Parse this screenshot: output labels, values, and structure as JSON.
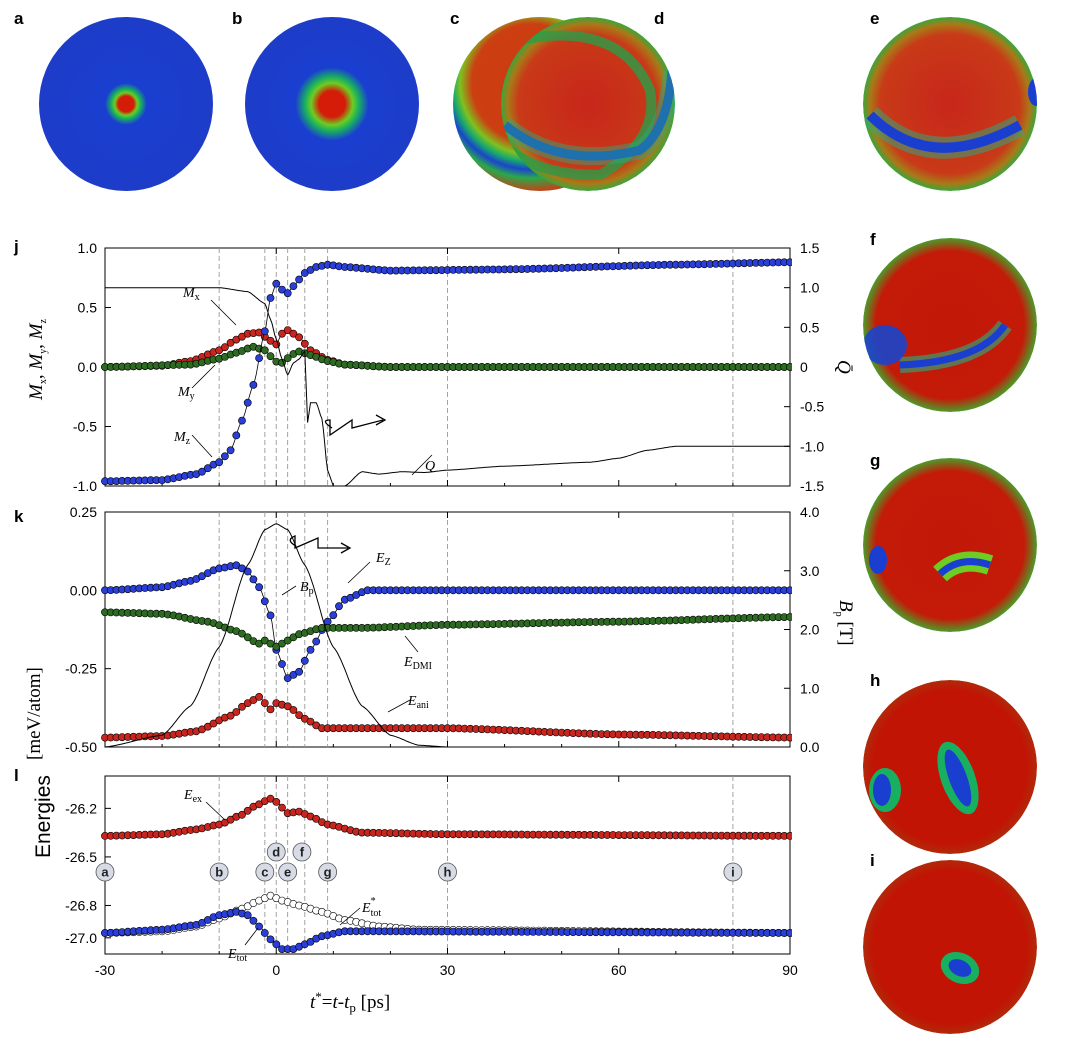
{
  "panel_letters": {
    "a": "a",
    "b": "b",
    "c": "c",
    "d": "d",
    "e": "e",
    "f": "f",
    "g": "g",
    "h": "h",
    "i": "i",
    "j": "j",
    "k": "k",
    "l": "l"
  },
  "colors": {
    "blue": "#2233cc",
    "red": "#cc2200",
    "green": "#00bb33",
    "dot_blue": "#2a3ed8",
    "dot_red": "#c8251e",
    "dot_green": "#2d6b22"
  },
  "snapshots": [
    {
      "id": "a",
      "description_kind": "small-core"
    },
    {
      "id": "b",
      "description_kind": "medium-core"
    },
    {
      "id": "c",
      "description_kind": "inverted"
    },
    {
      "id": "d",
      "description_kind": "wall-arc"
    },
    {
      "id": "e",
      "description_kind": "wall-arc-low"
    },
    {
      "id": "f",
      "description_kind": "elongated"
    },
    {
      "id": "g",
      "description_kind": "short-elongated"
    },
    {
      "id": "h",
      "description_kind": "tilted-oval"
    },
    {
      "id": "i",
      "description_kind": "small-oval"
    }
  ],
  "x_axis": {
    "label": "t* = t - t_p [ps]",
    "ticks": [
      "-30",
      "0",
      "30",
      "60",
      "90"
    ],
    "range": [
      -30,
      90
    ]
  },
  "markers": {
    "times": [
      -30,
      -10,
      -2,
      0,
      2,
      5,
      9,
      30,
      80
    ],
    "labels": [
      "a",
      "b",
      "c",
      "d",
      "e",
      "f",
      "g",
      "h",
      "i"
    ]
  },
  "chart_data": [
    {
      "panel": "j",
      "type": "line",
      "ylabel_left": "Mx, My, Mz",
      "ylabel_right": "Q",
      "ylim_left": [
        -1.0,
        1.0
      ],
      "ylim_right": [
        -1.5,
        1.5
      ],
      "left_ticks": [
        "1.0",
        "0.5",
        "0.0",
        "-0.5",
        "-1.0"
      ],
      "right_ticks": [
        "1.5",
        "1.0",
        "0.5",
        "0",
        "-0.5",
        "-1.0",
        "-1.5"
      ],
      "series": [
        {
          "name": "Mx",
          "points": [
            [
              -30,
              0
            ],
            [
              -20,
              0.01
            ],
            [
              -15,
              0.05
            ],
            [
              -10,
              0.14
            ],
            [
              -7,
              0.23
            ],
            [
              -5,
              0.28
            ],
            [
              -3,
              0.29
            ],
            [
              -1,
              0.22
            ],
            [
              0,
              0.19
            ],
            [
              1,
              0.28
            ],
            [
              2,
              0.31
            ],
            [
              4,
              0.25
            ],
            [
              6,
              0.14
            ],
            [
              9,
              0.06
            ],
            [
              12,
              0.02
            ],
            [
              20,
              0
            ],
            [
              90,
              0
            ]
          ]
        },
        {
          "name": "My",
          "points": [
            [
              -30,
              0
            ],
            [
              -15,
              0.02
            ],
            [
              -10,
              0.07
            ],
            [
              -7,
              0.12
            ],
            [
              -4,
              0.17
            ],
            [
              -2,
              0.14
            ],
            [
              -0.5,
              0.07
            ],
            [
              0.5,
              0.02
            ],
            [
              1.5,
              0.05
            ],
            [
              2.5,
              0.1
            ],
            [
              4,
              0.13
            ],
            [
              6,
              0.1
            ],
            [
              9,
              0.05
            ],
            [
              12,
              0.02
            ],
            [
              20,
              0
            ],
            [
              90,
              0
            ]
          ]
        },
        {
          "name": "Mz",
          "points": [
            [
              -30,
              -0.96
            ],
            [
              -20,
              -0.95
            ],
            [
              -14,
              -0.9
            ],
            [
              -10,
              -0.8
            ],
            [
              -8,
              -0.7
            ],
            [
              -6,
              -0.45
            ],
            [
              -4,
              -0.15
            ],
            [
              -2,
              0.3
            ],
            [
              -1,
              0.58
            ],
            [
              0,
              0.7
            ],
            [
              1,
              0.65
            ],
            [
              2,
              0.62
            ],
            [
              3,
              0.68
            ],
            [
              5,
              0.79
            ],
            [
              7,
              0.84
            ],
            [
              9,
              0.86
            ],
            [
              12,
              0.84
            ],
            [
              20,
              0.81
            ],
            [
              40,
              0.82
            ],
            [
              70,
              0.86
            ],
            [
              90,
              0.88
            ]
          ]
        },
        {
          "name": "Q",
          "points": [
            [
              -30,
              1.0
            ],
            [
              -10,
              1.0
            ],
            [
              -5,
              0.95
            ],
            [
              -2,
              0.8
            ],
            [
              -1,
              0.6
            ],
            [
              0,
              0.35
            ],
            [
              1,
              0.1
            ],
            [
              2,
              -0.1
            ],
            [
              3,
              0.05
            ],
            [
              4,
              0.1
            ],
            [
              5,
              0.2
            ],
            [
              5.5,
              -0.7
            ],
            [
              6,
              -0.45
            ],
            [
              7,
              -0.45
            ],
            [
              8,
              -0.65
            ],
            [
              9,
              -1.3
            ],
            [
              9.5,
              -1.4
            ],
            [
              10,
              -1.5
            ],
            [
              12,
              -1.5
            ],
            [
              15,
              -1.32
            ],
            [
              18,
              -1.35
            ],
            [
              22,
              -1.32
            ],
            [
              26,
              -1.33
            ],
            [
              30,
              -1.3
            ],
            [
              40,
              -1.25
            ],
            [
              55,
              -1.2
            ],
            [
              60,
              -1.15
            ],
            [
              65,
              -1.05
            ],
            [
              70,
              -1.0
            ],
            [
              90,
              -1.0
            ]
          ]
        }
      ]
    },
    {
      "panel": "k",
      "type": "line",
      "ylabel_left": "",
      "ylabel_right": "B_p [T]",
      "ylim_left": [
        -0.5,
        0.25
      ],
      "ylim_right": [
        0,
        4.0
      ],
      "left_ticks": [
        "0.25",
        "0.00",
        "-0.25",
        "-0.50"
      ],
      "right_ticks": [
        "4.0",
        "3.0",
        "2.0",
        "1.0",
        "0.0"
      ],
      "series": [
        {
          "name": "EZ",
          "points": [
            [
              -30,
              0
            ],
            [
              -20,
              0.01
            ],
            [
              -15,
              0.03
            ],
            [
              -10,
              0.07
            ],
            [
              -7,
              0.08
            ],
            [
              -5,
              0.06
            ],
            [
              -3,
              0.01
            ],
            [
              -1,
              -0.08
            ],
            [
              0,
              -0.19
            ],
            [
              2,
              -0.28
            ],
            [
              4,
              -0.26
            ],
            [
              6,
              -0.19
            ],
            [
              9,
              -0.1
            ],
            [
              12,
              -0.03
            ],
            [
              16,
              0
            ],
            [
              90,
              0
            ]
          ]
        },
        {
          "name": "EDMI",
          "points": [
            [
              -30,
              -0.07
            ],
            [
              -20,
              -0.075
            ],
            [
              -12,
              -0.1
            ],
            [
              -7,
              -0.13
            ],
            [
              -3,
              -0.17
            ],
            [
              -2,
              -0.16
            ],
            [
              0,
              -0.18
            ],
            [
              2,
              -0.16
            ],
            [
              4,
              -0.14
            ],
            [
              8,
              -0.12
            ],
            [
              15,
              -0.12
            ],
            [
              30,
              -0.11
            ],
            [
              60,
              -0.1
            ],
            [
              90,
              -0.085
            ]
          ]
        },
        {
          "name": "Eani",
          "points": [
            [
              -30,
              -0.47
            ],
            [
              -20,
              -0.465
            ],
            [
              -14,
              -0.45
            ],
            [
              -8,
              -0.4
            ],
            [
              -5,
              -0.36
            ],
            [
              -3,
              -0.34
            ],
            [
              -1,
              -0.38
            ],
            [
              0,
              -0.36
            ],
            [
              2,
              -0.37
            ],
            [
              5,
              -0.41
            ],
            [
              8,
              -0.44
            ],
            [
              15,
              -0.44
            ],
            [
              30,
              -0.44
            ],
            [
              60,
              -0.46
            ],
            [
              90,
              -0.47
            ]
          ]
        },
        {
          "name": "Bp",
          "points": [
            [
              -30,
              0
            ],
            [
              -20,
              0.2
            ],
            [
              -15,
              0.7
            ],
            [
              -10,
              1.7
            ],
            [
              -5,
              3.1
            ],
            [
              -2,
              3.7
            ],
            [
              0,
              3.8
            ],
            [
              2,
              3.7
            ],
            [
              5,
              3.1
            ],
            [
              10,
              1.7
            ],
            [
              15,
              0.7
            ],
            [
              20,
              0.2
            ],
            [
              25,
              0.03
            ],
            [
              30,
              0
            ],
            [
              90,
              0
            ]
          ]
        }
      ]
    },
    {
      "panel": "l",
      "type": "line",
      "ylabel_left": "",
      "ylim_left": [
        -27.1,
        -26.0
      ],
      "left_ticks": [
        "-26.2",
        "-26.5",
        "-26.8",
        "-27.0"
      ],
      "series": [
        {
          "name": "Eex",
          "points": [
            [
              -30,
              -26.37
            ],
            [
              -20,
              -26.36
            ],
            [
              -14,
              -26.33
            ],
            [
              -10,
              -26.3
            ],
            [
              -6,
              -26.24
            ],
            [
              -4,
              -26.19
            ],
            [
              -1,
              -26.14
            ],
            [
              0,
              -26.16
            ],
            [
              2,
              -26.23
            ],
            [
              4,
              -26.22
            ],
            [
              6,
              -26.25
            ],
            [
              9,
              -26.3
            ],
            [
              15,
              -26.35
            ],
            [
              30,
              -26.36
            ],
            [
              90,
              -26.37
            ]
          ]
        },
        {
          "name": "Etot*",
          "points": [
            [
              -30,
              -26.97
            ],
            [
              -20,
              -26.96
            ],
            [
              -14,
              -26.93
            ],
            [
              -10,
              -26.88
            ],
            [
              -6,
              -26.82
            ],
            [
              -3,
              -26.77
            ],
            [
              -1,
              -26.74
            ],
            [
              1,
              -26.77
            ],
            [
              4,
              -26.8
            ],
            [
              8,
              -26.84
            ],
            [
              12,
              -26.89
            ],
            [
              18,
              -26.93
            ],
            [
              25,
              -26.95
            ],
            [
              90,
              -26.97
            ]
          ]
        },
        {
          "name": "Etot",
          "points": [
            [
              -30,
              -26.97
            ],
            [
              -20,
              -26.95
            ],
            [
              -14,
              -26.92
            ],
            [
              -10,
              -26.86
            ],
            [
              -7,
              -26.84
            ],
            [
              -5,
              -26.86
            ],
            [
              -3,
              -26.93
            ],
            [
              -1,
              -27.01
            ],
            [
              1,
              -27.07
            ],
            [
              3,
              -27.07
            ],
            [
              5,
              -27.04
            ],
            [
              8,
              -26.99
            ],
            [
              12,
              -26.96
            ],
            [
              18,
              -26.96
            ],
            [
              90,
              -26.97
            ]
          ]
        }
      ]
    }
  ],
  "annotations": {
    "Mx": "M",
    "My": "M",
    "Mz": "M",
    "Q": "Q",
    "Bp": "B",
    "EZ": "E",
    "EDMI": "E",
    "Eani": "E",
    "Eex": "E",
    "Etot": "E",
    "Etot_star": "E",
    "sub_x": "x",
    "sub_y": "y",
    "sub_z": "z",
    "sub_p": "p",
    "sub_Z": "Z",
    "sub_DMI": "DMI",
    "sub_ani": "ani",
    "sub_ex": "ex",
    "sub_tot": "tot",
    "sup_star": "*",
    "left_ylabel_j": "Mx, My, Mz",
    "left_ylabel_kl_unit": "[meV/atom]",
    "left_ylabel_energies": "Energies",
    "right_ylabel_j": "Q",
    "right_ylabel_k": "B_p [T]",
    "x_label_t": "t",
    "x_label_star": "*",
    "x_label_eq": "=t-t",
    "x_label_p": "p",
    "x_label_unit": "[ps]"
  }
}
